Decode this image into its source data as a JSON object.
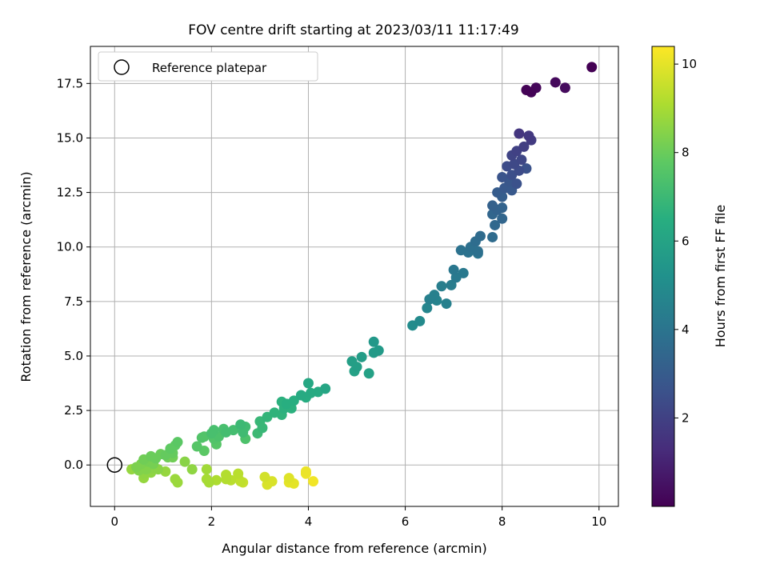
{
  "chart_data": {
    "type": "scatter",
    "title": "FOV centre drift starting at 2023/03/11 11:17:49",
    "xlabel": "Angular distance from reference (arcmin)",
    "ylabel": "Rotation from reference (arcmin)",
    "xlim": [
      -0.5,
      10.4
    ],
    "ylim": [
      -1.9,
      19.2
    ],
    "xticks": [
      0,
      2,
      4,
      6,
      8,
      10
    ],
    "yticks": [
      0.0,
      2.5,
      5.0,
      7.5,
      10.0,
      12.5,
      15.0,
      17.5
    ],
    "xtick_labels": [
      "0",
      "2",
      "4",
      "6",
      "8",
      "10"
    ],
    "ytick_labels": [
      "0.0",
      "2.5",
      "5.0",
      "7.5",
      "10.0",
      "12.5",
      "15.0",
      "17.5"
    ],
    "grid": true,
    "legend": {
      "position": "top-left",
      "entries": [
        "Reference platepar"
      ]
    },
    "reference_point": {
      "x": 0,
      "y": 0
    },
    "colorbar": {
      "label": "Hours from first FF file",
      "colormap": "viridis",
      "range": [
        0.0,
        10.4
      ],
      "ticks": [
        2,
        4,
        6,
        8,
        10
      ],
      "tick_labels": [
        "2",
        "4",
        "6",
        "8",
        "10"
      ]
    },
    "points": [
      {
        "x": 8.5,
        "y": 17.2,
        "c": 0.05
      },
      {
        "x": 8.6,
        "y": 17.1,
        "c": 0.1
      },
      {
        "x": 8.7,
        "y": 17.3,
        "c": 0.15
      },
      {
        "x": 9.1,
        "y": 17.55,
        "c": 0.25
      },
      {
        "x": 9.3,
        "y": 17.3,
        "c": 0.3
      },
      {
        "x": 9.85,
        "y": 18.25,
        "c": 0.0
      },
      {
        "x": 8.35,
        "y": 15.2,
        "c": 1.6
      },
      {
        "x": 8.55,
        "y": 15.1,
        "c": 1.7
      },
      {
        "x": 8.6,
        "y": 14.9,
        "c": 1.8
      },
      {
        "x": 8.45,
        "y": 14.6,
        "c": 1.9
      },
      {
        "x": 8.3,
        "y": 14.4,
        "c": 2.0
      },
      {
        "x": 8.2,
        "y": 14.2,
        "c": 2.1
      },
      {
        "x": 8.4,
        "y": 14.0,
        "c": 2.2
      },
      {
        "x": 8.25,
        "y": 13.8,
        "c": 2.3
      },
      {
        "x": 8.1,
        "y": 13.7,
        "c": 2.4
      },
      {
        "x": 8.35,
        "y": 13.5,
        "c": 2.4
      },
      {
        "x": 8.5,
        "y": 13.6,
        "c": 2.6
      },
      {
        "x": 8.2,
        "y": 13.3,
        "c": 2.5
      },
      {
        "x": 8.0,
        "y": 13.2,
        "c": 2.7
      },
      {
        "x": 8.15,
        "y": 13.0,
        "c": 2.8
      },
      {
        "x": 8.3,
        "y": 12.9,
        "c": 2.6
      },
      {
        "x": 8.05,
        "y": 12.7,
        "c": 2.9
      },
      {
        "x": 8.2,
        "y": 12.6,
        "c": 2.9
      },
      {
        "x": 7.9,
        "y": 12.5,
        "c": 3.0
      },
      {
        "x": 8.0,
        "y": 12.3,
        "c": 3.1
      },
      {
        "x": 7.8,
        "y": 11.9,
        "c": 3.2
      },
      {
        "x": 7.9,
        "y": 11.7,
        "c": 3.3
      },
      {
        "x": 8.0,
        "y": 11.8,
        "c": 3.3
      },
      {
        "x": 7.8,
        "y": 11.5,
        "c": 3.4
      },
      {
        "x": 8.0,
        "y": 11.3,
        "c": 3.4
      },
      {
        "x": 7.85,
        "y": 11.0,
        "c": 3.5
      },
      {
        "x": 7.55,
        "y": 10.5,
        "c": 3.6
      },
      {
        "x": 7.8,
        "y": 10.45,
        "c": 3.6
      },
      {
        "x": 7.45,
        "y": 10.25,
        "c": 3.7
      },
      {
        "x": 7.35,
        "y": 10.0,
        "c": 3.8
      },
      {
        "x": 7.5,
        "y": 9.8,
        "c": 3.8
      },
      {
        "x": 7.15,
        "y": 9.85,
        "c": 3.9
      },
      {
        "x": 7.3,
        "y": 9.75,
        "c": 3.9
      },
      {
        "x": 7.5,
        "y": 9.7,
        "c": 4.0
      },
      {
        "x": 7.0,
        "y": 8.95,
        "c": 4.1
      },
      {
        "x": 7.2,
        "y": 8.8,
        "c": 4.2
      },
      {
        "x": 7.05,
        "y": 8.6,
        "c": 4.2
      },
      {
        "x": 6.95,
        "y": 8.25,
        "c": 4.3
      },
      {
        "x": 6.75,
        "y": 8.2,
        "c": 4.4
      },
      {
        "x": 6.6,
        "y": 7.8,
        "c": 4.5
      },
      {
        "x": 6.5,
        "y": 7.6,
        "c": 4.5
      },
      {
        "x": 6.65,
        "y": 7.55,
        "c": 4.6
      },
      {
        "x": 6.45,
        "y": 7.2,
        "c": 4.7
      },
      {
        "x": 6.85,
        "y": 7.4,
        "c": 4.5
      },
      {
        "x": 6.3,
        "y": 6.6,
        "c": 4.9
      },
      {
        "x": 6.15,
        "y": 6.4,
        "c": 5.0
      },
      {
        "x": 5.35,
        "y": 5.65,
        "c": 5.5
      },
      {
        "x": 5.45,
        "y": 5.25,
        "c": 5.6
      },
      {
        "x": 5.35,
        "y": 5.15,
        "c": 5.6
      },
      {
        "x": 5.1,
        "y": 4.95,
        "c": 5.7
      },
      {
        "x": 4.9,
        "y": 4.75,
        "c": 5.8
      },
      {
        "x": 5.0,
        "y": 4.5,
        "c": 5.8
      },
      {
        "x": 4.95,
        "y": 4.3,
        "c": 5.9
      },
      {
        "x": 5.25,
        "y": 4.2,
        "c": 5.9
      },
      {
        "x": 4.35,
        "y": 3.5,
        "c": 6.1
      },
      {
        "x": 4.0,
        "y": 3.75,
        "c": 6.2
      },
      {
        "x": 4.2,
        "y": 3.35,
        "c": 6.3
      },
      {
        "x": 4.05,
        "y": 3.3,
        "c": 6.3
      },
      {
        "x": 3.85,
        "y": 3.2,
        "c": 6.3
      },
      {
        "x": 3.95,
        "y": 3.1,
        "c": 6.4
      },
      {
        "x": 3.7,
        "y": 2.95,
        "c": 6.5
      },
      {
        "x": 3.55,
        "y": 2.8,
        "c": 6.5
      },
      {
        "x": 3.45,
        "y": 2.9,
        "c": 6.6
      },
      {
        "x": 3.5,
        "y": 2.6,
        "c": 6.6
      },
      {
        "x": 3.65,
        "y": 2.6,
        "c": 6.6
      },
      {
        "x": 3.3,
        "y": 2.4,
        "c": 6.7
      },
      {
        "x": 3.45,
        "y": 2.3,
        "c": 6.7
      },
      {
        "x": 3.15,
        "y": 2.2,
        "c": 6.8
      },
      {
        "x": 3.0,
        "y": 2.0,
        "c": 6.9
      },
      {
        "x": 3.05,
        "y": 1.7,
        "c": 6.9
      },
      {
        "x": 2.95,
        "y": 1.45,
        "c": 7.0
      },
      {
        "x": 2.6,
        "y": 1.85,
        "c": 7.0
      },
      {
        "x": 2.7,
        "y": 1.75,
        "c": 7.1
      },
      {
        "x": 2.65,
        "y": 1.5,
        "c": 7.1
      },
      {
        "x": 2.45,
        "y": 1.6,
        "c": 7.2
      },
      {
        "x": 2.3,
        "y": 1.5,
        "c": 7.2
      },
      {
        "x": 2.25,
        "y": 1.65,
        "c": 7.3
      },
      {
        "x": 2.05,
        "y": 1.6,
        "c": 7.3
      },
      {
        "x": 2.0,
        "y": 1.45,
        "c": 7.3
      },
      {
        "x": 2.15,
        "y": 1.3,
        "c": 7.4
      },
      {
        "x": 2.7,
        "y": 1.2,
        "c": 7.4
      },
      {
        "x": 2.05,
        "y": 1.2,
        "c": 7.5
      },
      {
        "x": 1.85,
        "y": 1.3,
        "c": 7.5
      },
      {
        "x": 1.8,
        "y": 1.25,
        "c": 7.5
      },
      {
        "x": 2.1,
        "y": 0.95,
        "c": 7.6
      },
      {
        "x": 1.7,
        "y": 0.85,
        "c": 7.6
      },
      {
        "x": 1.85,
        "y": 0.65,
        "c": 7.7
      },
      {
        "x": 1.3,
        "y": 1.05,
        "c": 7.7
      },
      {
        "x": 1.25,
        "y": 0.9,
        "c": 7.8
      },
      {
        "x": 1.15,
        "y": 0.75,
        "c": 7.8
      },
      {
        "x": 1.2,
        "y": 0.55,
        "c": 7.9
      },
      {
        "x": 1.05,
        "y": 0.45,
        "c": 7.9
      },
      {
        "x": 0.95,
        "y": 0.5,
        "c": 8.0
      },
      {
        "x": 0.75,
        "y": 0.4,
        "c": 8.0
      },
      {
        "x": 0.85,
        "y": 0.3,
        "c": 8.0
      },
      {
        "x": 1.1,
        "y": 0.35,
        "c": 8.1
      },
      {
        "x": 1.2,
        "y": 0.35,
        "c": 8.1
      },
      {
        "x": 0.6,
        "y": 0.25,
        "c": 8.1
      },
      {
        "x": 0.7,
        "y": 0.15,
        "c": 8.2
      },
      {
        "x": 0.8,
        "y": 0.05,
        "c": 8.2
      },
      {
        "x": 0.55,
        "y": 0.05,
        "c": 8.3
      },
      {
        "x": 0.45,
        "y": -0.1,
        "c": 8.3
      },
      {
        "x": 0.5,
        "y": -0.25,
        "c": 8.4
      },
      {
        "x": 0.65,
        "y": -0.2,
        "c": 8.4
      },
      {
        "x": 0.75,
        "y": -0.15,
        "c": 8.5
      },
      {
        "x": 0.9,
        "y": -0.2,
        "c": 8.5
      },
      {
        "x": 0.6,
        "y": -0.4,
        "c": 8.6
      },
      {
        "x": 0.75,
        "y": -0.35,
        "c": 8.6
      },
      {
        "x": 0.6,
        "y": -0.6,
        "c": 8.7
      },
      {
        "x": 1.45,
        "y": 0.15,
        "c": 8.5
      },
      {
        "x": 1.6,
        "y": -0.2,
        "c": 8.6
      },
      {
        "x": 1.05,
        "y": -0.3,
        "c": 8.7
      },
      {
        "x": 1.25,
        "y": -0.65,
        "c": 8.8
      },
      {
        "x": 1.3,
        "y": -0.8,
        "c": 8.8
      },
      {
        "x": 0.35,
        "y": -0.2,
        "c": 8.7
      },
      {
        "x": 1.9,
        "y": -0.2,
        "c": 8.9
      },
      {
        "x": 1.9,
        "y": -0.65,
        "c": 9.0
      },
      {
        "x": 1.95,
        "y": -0.8,
        "c": 9.0
      },
      {
        "x": 2.1,
        "y": -0.7,
        "c": 9.1
      },
      {
        "x": 2.3,
        "y": -0.45,
        "c": 9.2
      },
      {
        "x": 2.3,
        "y": -0.65,
        "c": 9.2
      },
      {
        "x": 2.4,
        "y": -0.7,
        "c": 9.3
      },
      {
        "x": 2.55,
        "y": -0.4,
        "c": 9.3
      },
      {
        "x": 2.55,
        "y": -0.6,
        "c": 9.4
      },
      {
        "x": 2.6,
        "y": -0.75,
        "c": 9.4
      },
      {
        "x": 2.65,
        "y": -0.8,
        "c": 9.5
      },
      {
        "x": 3.1,
        "y": -0.55,
        "c": 9.7
      },
      {
        "x": 3.15,
        "y": -0.9,
        "c": 9.8
      },
      {
        "x": 3.25,
        "y": -0.75,
        "c": 9.8
      },
      {
        "x": 3.6,
        "y": -0.6,
        "c": 9.9
      },
      {
        "x": 3.6,
        "y": -0.8,
        "c": 10.0
      },
      {
        "x": 3.7,
        "y": -0.85,
        "c": 10.0
      },
      {
        "x": 3.95,
        "y": -0.3,
        "c": 10.1
      },
      {
        "x": 4.1,
        "y": -0.75,
        "c": 10.2
      },
      {
        "x": 3.95,
        "y": -0.4,
        "c": 10.15
      }
    ]
  }
}
